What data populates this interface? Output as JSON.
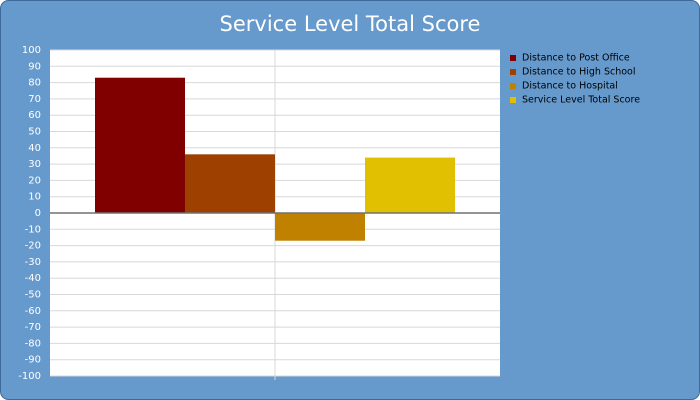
{
  "chart_data": {
    "type": "bar",
    "title": "Service Level Total Score",
    "categories": [
      null
    ],
    "series": [
      {
        "name": "Distance to Post Office",
        "color": "#800000",
        "values": [
          83
        ]
      },
      {
        "name": "Distance to High School",
        "color": "#9e4000",
        "values": [
          36
        ]
      },
      {
        "name": "Distance to Hospital",
        "color": "#c08000",
        "values": [
          -17
        ]
      },
      {
        "name": "Service Level Total Score",
        "color": "#e0c000",
        "values": [
          34
        ]
      }
    ],
    "ylim": [
      -100,
      100
    ],
    "yticks": [
      -100,
      -90,
      -80,
      -70,
      -60,
      -50,
      -40,
      -30,
      -20,
      -10,
      0,
      10,
      20,
      30,
      40,
      50,
      60,
      70,
      80,
      90,
      100
    ],
    "grid": true,
    "legend": "right"
  }
}
